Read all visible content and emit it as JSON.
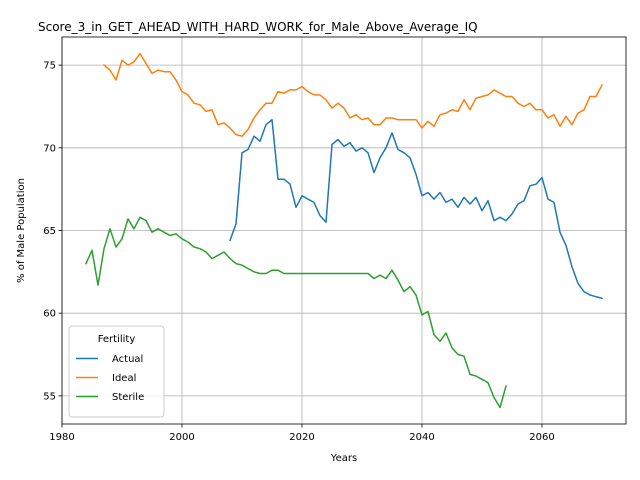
{
  "chart_data": {
    "type": "line",
    "title": "Score_3_in_GET_AHEAD_WITH_HARD_WORK_for_Male_Above_Average_IQ",
    "xlabel": "Years",
    "ylabel": "% of Male Population",
    "xlim": [
      1980,
      2074
    ],
    "ylim": [
      53.3,
      76.7
    ],
    "xticks": [
      1980,
      2000,
      2020,
      2040,
      2060
    ],
    "yticks": [
      55,
      60,
      65,
      70,
      75
    ],
    "grid": true,
    "legend": {
      "title": "Fertility",
      "placement": "lower-left"
    },
    "series": [
      {
        "name": "Actual",
        "color": "#1f77b4",
        "points": [
          [
            2008,
            64.4
          ],
          [
            2009,
            65.4
          ],
          [
            2010,
            69.7
          ],
          [
            2011,
            69.9
          ],
          [
            2012,
            70.7
          ],
          [
            2013,
            70.4
          ],
          [
            2014,
            71.4
          ],
          [
            2015,
            71.7
          ],
          [
            2016,
            68.1
          ],
          [
            2017,
            68.1
          ],
          [
            2018,
            67.8
          ],
          [
            2019,
            66.4
          ],
          [
            2020,
            67.1
          ],
          [
            2021,
            66.9
          ],
          [
            2022,
            66.7
          ],
          [
            2023,
            65.9
          ],
          [
            2024,
            65.5
          ],
          [
            2025,
            70.2
          ],
          [
            2026,
            70.5
          ],
          [
            2027,
            70.1
          ],
          [
            2028,
            70.3
          ],
          [
            2029,
            69.8
          ],
          [
            2030,
            70.0
          ],
          [
            2031,
            69.7
          ],
          [
            2032,
            68.5
          ],
          [
            2033,
            69.4
          ],
          [
            2034,
            70.0
          ],
          [
            2035,
            70.9
          ],
          [
            2036,
            69.9
          ],
          [
            2037,
            69.7
          ],
          [
            2038,
            69.4
          ],
          [
            2039,
            68.4
          ],
          [
            2040,
            67.1
          ],
          [
            2041,
            67.3
          ],
          [
            2042,
            66.9
          ],
          [
            2043,
            67.3
          ],
          [
            2044,
            66.7
          ],
          [
            2045,
            66.9
          ],
          [
            2046,
            66.4
          ],
          [
            2047,
            67.0
          ],
          [
            2048,
            66.6
          ],
          [
            2049,
            67.0
          ],
          [
            2050,
            66.2
          ],
          [
            2051,
            66.8
          ],
          [
            2052,
            65.6
          ],
          [
            2053,
            65.8
          ],
          [
            2054,
            65.6
          ],
          [
            2055,
            66.0
          ],
          [
            2056,
            66.6
          ],
          [
            2057,
            66.8
          ],
          [
            2058,
            67.7
          ],
          [
            2059,
            67.8
          ],
          [
            2060,
            68.2
          ],
          [
            2061,
            66.9
          ],
          [
            2062,
            66.7
          ],
          [
            2063,
            64.9
          ],
          [
            2064,
            64.1
          ],
          [
            2065,
            62.8
          ],
          [
            2066,
            61.8
          ],
          [
            2067,
            61.3
          ],
          [
            2068,
            61.1
          ],
          [
            2069,
            61.0
          ],
          [
            2070,
            60.9
          ]
        ]
      },
      {
        "name": "Ideal",
        "color": "#ff7f0e",
        "points": [
          [
            1987,
            75.0
          ],
          [
            1988,
            74.7
          ],
          [
            1989,
            74.1
          ],
          [
            1990,
            75.3
          ],
          [
            1991,
            75.0
          ],
          [
            1992,
            75.2
          ],
          [
            1993,
            75.7
          ],
          [
            1994,
            75.1
          ],
          [
            1995,
            74.5
          ],
          [
            1996,
            74.7
          ],
          [
            1997,
            74.6
          ],
          [
            1998,
            74.6
          ],
          [
            1999,
            74.1
          ],
          [
            2000,
            73.4
          ],
          [
            2001,
            73.2
          ],
          [
            2002,
            72.7
          ],
          [
            2003,
            72.6
          ],
          [
            2004,
            72.2
          ],
          [
            2005,
            72.3
          ],
          [
            2006,
            71.4
          ],
          [
            2007,
            71.5
          ],
          [
            2008,
            71.2
          ],
          [
            2009,
            70.8
          ],
          [
            2010,
            70.7
          ],
          [
            2011,
            71.1
          ],
          [
            2012,
            71.8
          ],
          [
            2013,
            72.3
          ],
          [
            2014,
            72.7
          ],
          [
            2015,
            72.7
          ],
          [
            2016,
            73.4
          ],
          [
            2017,
            73.3
          ],
          [
            2018,
            73.5
          ],
          [
            2019,
            73.5
          ],
          [
            2020,
            73.7
          ],
          [
            2021,
            73.4
          ],
          [
            2022,
            73.2
          ],
          [
            2023,
            73.2
          ],
          [
            2024,
            72.9
          ],
          [
            2025,
            72.4
          ],
          [
            2026,
            72.7
          ],
          [
            2027,
            72.4
          ],
          [
            2028,
            71.8
          ],
          [
            2029,
            72.0
          ],
          [
            2030,
            71.7
          ],
          [
            2031,
            71.8
          ],
          [
            2032,
            71.4
          ],
          [
            2033,
            71.4
          ],
          [
            2034,
            71.8
          ],
          [
            2035,
            71.8
          ],
          [
            2036,
            71.7
          ],
          [
            2037,
            71.7
          ],
          [
            2038,
            71.7
          ],
          [
            2039,
            71.7
          ],
          [
            2040,
            71.2
          ],
          [
            2041,
            71.6
          ],
          [
            2042,
            71.3
          ],
          [
            2043,
            72.0
          ],
          [
            2044,
            72.1
          ],
          [
            2045,
            72.3
          ],
          [
            2046,
            72.2
          ],
          [
            2047,
            72.9
          ],
          [
            2048,
            72.3
          ],
          [
            2049,
            73.0
          ],
          [
            2050,
            73.1
          ],
          [
            2051,
            73.2
          ],
          [
            2052,
            73.5
          ],
          [
            2053,
            73.3
          ],
          [
            2054,
            73.1
          ],
          [
            2055,
            73.1
          ],
          [
            2056,
            72.7
          ],
          [
            2057,
            72.5
          ],
          [
            2058,
            72.7
          ],
          [
            2059,
            72.3
          ],
          [
            2060,
            72.3
          ],
          [
            2061,
            71.8
          ],
          [
            2062,
            72.0
          ],
          [
            2063,
            71.3
          ],
          [
            2064,
            71.9
          ],
          [
            2065,
            71.4
          ],
          [
            2066,
            72.1
          ],
          [
            2067,
            72.3
          ],
          [
            2068,
            73.1
          ],
          [
            2069,
            73.1
          ],
          [
            2070,
            73.8
          ]
        ]
      },
      {
        "name": "Sterile",
        "color": "#2ca02c",
        "points": [
          [
            1984,
            63.0
          ],
          [
            1985,
            63.8
          ],
          [
            1986,
            61.7
          ],
          [
            1987,
            63.9
          ],
          [
            1988,
            65.1
          ],
          [
            1989,
            64.0
          ],
          [
            1990,
            64.5
          ],
          [
            1991,
            65.7
          ],
          [
            1992,
            65.1
          ],
          [
            1993,
            65.8
          ],
          [
            1994,
            65.6
          ],
          [
            1995,
            64.9
          ],
          [
            1996,
            65.1
          ],
          [
            1997,
            64.9
          ],
          [
            1998,
            64.7
          ],
          [
            1999,
            64.8
          ],
          [
            2000,
            64.5
          ],
          [
            2001,
            64.3
          ],
          [
            2002,
            64.0
          ],
          [
            2003,
            63.9
          ],
          [
            2004,
            63.7
          ],
          [
            2005,
            63.3
          ],
          [
            2006,
            63.5
          ],
          [
            2007,
            63.7
          ],
          [
            2008,
            63.3
          ],
          [
            2009,
            63.0
          ],
          [
            2010,
            62.9
          ],
          [
            2011,
            62.7
          ],
          [
            2012,
            62.5
          ],
          [
            2013,
            62.4
          ],
          [
            2014,
            62.4
          ],
          [
            2015,
            62.6
          ],
          [
            2016,
            62.6
          ],
          [
            2017,
            62.4
          ],
          [
            2018,
            62.4
          ],
          [
            2019,
            62.4
          ],
          [
            2020,
            62.4
          ],
          [
            2021,
            62.4
          ],
          [
            2022,
            62.4
          ],
          [
            2023,
            62.4
          ],
          [
            2024,
            62.4
          ],
          [
            2025,
            62.4
          ],
          [
            2026,
            62.4
          ],
          [
            2027,
            62.4
          ],
          [
            2028,
            62.4
          ],
          [
            2029,
            62.4
          ],
          [
            2030,
            62.4
          ],
          [
            2031,
            62.4
          ],
          [
            2032,
            62.1
          ],
          [
            2033,
            62.3
          ],
          [
            2034,
            62.1
          ],
          [
            2035,
            62.6
          ],
          [
            2036,
            62.0
          ],
          [
            2037,
            61.3
          ],
          [
            2038,
            61.6
          ],
          [
            2039,
            61.1
          ],
          [
            2040,
            59.9
          ],
          [
            2041,
            60.1
          ],
          [
            2042,
            58.7
          ],
          [
            2043,
            58.3
          ],
          [
            2044,
            58.8
          ],
          [
            2045,
            57.9
          ],
          [
            2046,
            57.5
          ],
          [
            2047,
            57.4
          ],
          [
            2048,
            56.3
          ],
          [
            2049,
            56.2
          ],
          [
            2050,
            56.0
          ],
          [
            2051,
            55.8
          ],
          [
            2052,
            54.9
          ],
          [
            2053,
            54.3
          ],
          [
            2054,
            55.6
          ]
        ]
      }
    ]
  }
}
